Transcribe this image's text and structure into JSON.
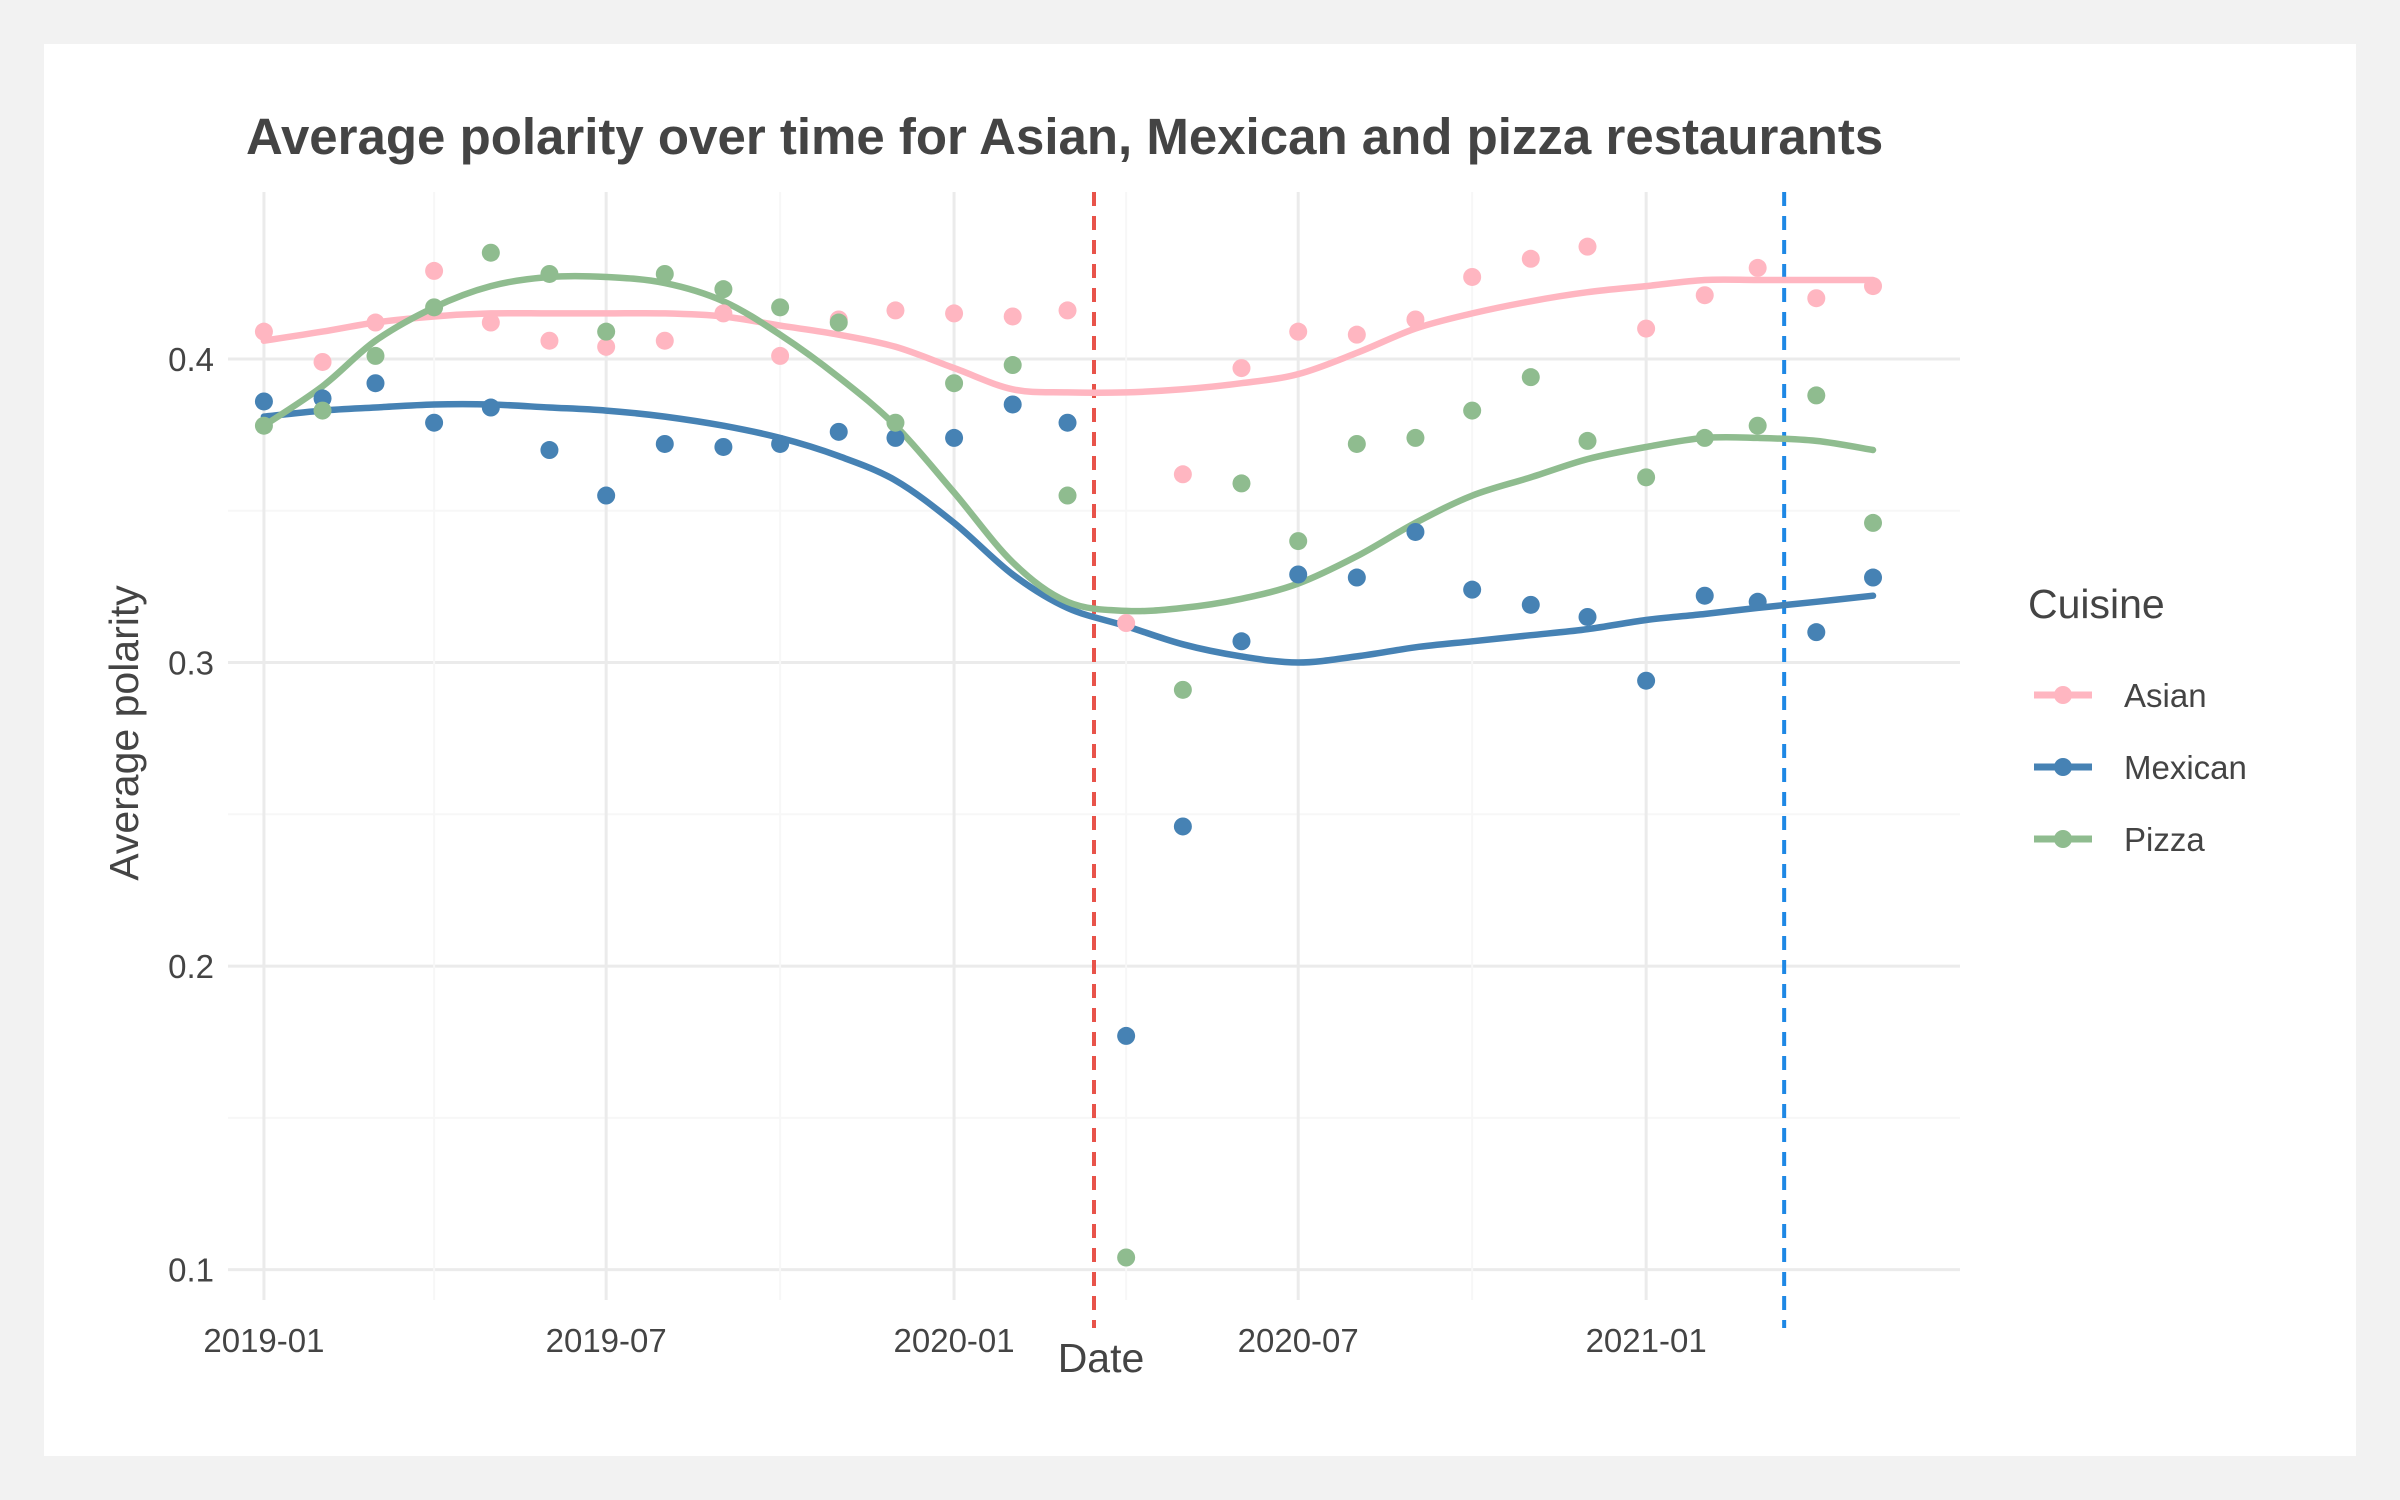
{
  "chart_data": {
    "type": "scatter",
    "title": "Average polarity over time for Asian, Mexican and pizza restaurants",
    "xlabel": "Date",
    "ylabel": "Average polarity",
    "x_ticks": [
      "2019-01",
      "2019-07",
      "2020-01",
      "2020-07",
      "2021-01"
    ],
    "y_ticks": [
      0.1,
      0.2,
      0.3,
      0.4
    ],
    "ylim": [
      0.09,
      0.455
    ],
    "xlim": [
      "2018-12-13",
      "2021-06-16"
    ],
    "grid": true,
    "legend": {
      "title": "Cuisine",
      "position": "right"
    },
    "vlines": [
      {
        "date": "2020-03-15",
        "color": "#e8534a",
        "style": "dashed"
      },
      {
        "date": "2021-03-15",
        "color": "#1e88e5",
        "style": "dashed"
      }
    ],
    "x": [
      "2019-01-01",
      "2019-02-01",
      "2019-03-01",
      "2019-04-01",
      "2019-05-01",
      "2019-06-01",
      "2019-07-01",
      "2019-08-01",
      "2019-09-01",
      "2019-10-01",
      "2019-11-01",
      "2019-12-01",
      "2020-01-01",
      "2020-02-01",
      "2020-03-01",
      "2020-04-01",
      "2020-05-01",
      "2020-06-01",
      "2020-07-01",
      "2020-08-01",
      "2020-09-01",
      "2020-10-01",
      "2020-11-01",
      "2020-12-01",
      "2021-01-01",
      "2021-02-01",
      "2021-03-01",
      "2021-04-01",
      "2021-05-01"
    ],
    "series": [
      {
        "name": "Asian",
        "color": "#ffb6c1",
        "values": [
          0.409,
          0.399,
          0.412,
          0.429,
          0.412,
          0.406,
          0.404,
          0.406,
          0.415,
          0.401,
          0.413,
          0.416,
          0.415,
          0.414,
          0.416,
          0.313,
          0.362,
          0.397,
          0.409,
          0.408,
          0.413,
          0.427,
          0.433,
          0.437,
          0.41,
          0.421,
          0.43,
          0.42,
          0.424
        ],
        "smooth": [
          0.406,
          0.409,
          0.412,
          0.414,
          0.415,
          0.415,
          0.415,
          0.415,
          0.414,
          0.411,
          0.408,
          0.404,
          0.397,
          0.39,
          0.389,
          0.389,
          0.39,
          0.392,
          0.395,
          0.402,
          0.41,
          0.415,
          0.419,
          0.422,
          0.424,
          0.426,
          0.426,
          0.426,
          0.426
        ]
      },
      {
        "name": "Mexican",
        "color": "#4682b4",
        "values": [
          0.386,
          0.387,
          0.392,
          0.379,
          0.384,
          0.37,
          0.355,
          0.372,
          0.371,
          0.372,
          0.376,
          0.374,
          0.374,
          0.385,
          0.379,
          0.177,
          0.246,
          0.307,
          0.329,
          0.328,
          0.343,
          0.324,
          0.319,
          0.315,
          0.294,
          0.322,
          0.32,
          0.31,
          0.328
        ],
        "smooth": [
          0.381,
          0.383,
          0.384,
          0.385,
          0.385,
          0.384,
          0.383,
          0.381,
          0.378,
          0.374,
          0.368,
          0.36,
          0.346,
          0.329,
          0.318,
          0.312,
          0.306,
          0.302,
          0.3,
          0.302,
          0.305,
          0.307,
          0.309,
          0.311,
          0.314,
          0.316,
          0.318,
          0.32,
          0.322
        ]
      },
      {
        "name": "Pizza",
        "color": "#8fbc8f",
        "values": [
          0.378,
          0.383,
          0.401,
          0.417,
          0.435,
          0.428,
          0.409,
          0.428,
          0.423,
          0.417,
          0.412,
          0.379,
          0.392,
          0.398,
          0.355,
          0.104,
          0.291,
          0.359,
          0.34,
          0.372,
          0.374,
          0.383,
          0.394,
          0.373,
          0.361,
          0.374,
          0.378,
          0.388,
          0.346
        ],
        "smooth": [
          0.378,
          0.391,
          0.406,
          0.417,
          0.424,
          0.427,
          0.427,
          0.425,
          0.419,
          0.408,
          0.394,
          0.378,
          0.356,
          0.333,
          0.32,
          0.317,
          0.318,
          0.321,
          0.326,
          0.335,
          0.346,
          0.355,
          0.361,
          0.367,
          0.371,
          0.374,
          0.374,
          0.373,
          0.37
        ]
      }
    ]
  }
}
